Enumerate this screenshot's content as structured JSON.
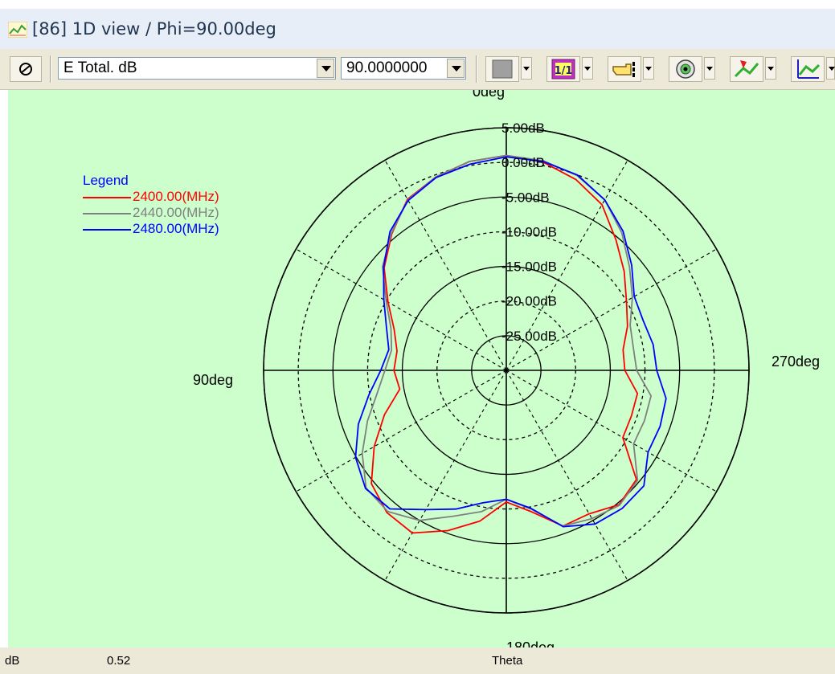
{
  "window": {
    "title": "[86] 1D view / Phi=90.00deg"
  },
  "toolbar": {
    "quantity_select": {
      "value": "E Total. dB"
    },
    "angle_select": {
      "value": "90.0000000"
    },
    "zoom_label": "1/1",
    "icons": [
      "rotate-icon",
      "square-icon",
      "zoom-1-1-icon",
      "pointer-hand-icon",
      "eye-target-icon",
      "arrow-curve-icon",
      "axis-curve-icon"
    ]
  },
  "chart_data": {
    "type": "polar-line",
    "angle_labels": {
      "top": "0deg",
      "left": "90deg",
      "right": "270deg",
      "bottom": "180deg"
    },
    "radial_tick_labels": [
      "5.00dB",
      "0.00dB",
      "-5.00dB",
      "-10.00dB",
      "-15.00dB",
      "-20.00dB",
      "-25.00dB"
    ],
    "radial_ticks_db": [
      5,
      0,
      -5,
      -10,
      -15,
      -20,
      -25
    ],
    "rlim_db": [
      -30,
      5
    ],
    "angle_unit": "deg",
    "grid": true,
    "legend": {
      "title": "Legend",
      "position": "top-left"
    },
    "series": [
      {
        "name": "2400.00(MHz)",
        "color": "#ff0000",
        "theta": [
          0,
          10,
          20,
          30,
          40,
          50,
          60,
          70,
          80,
          90,
          100,
          110,
          120,
          130,
          140,
          150,
          160,
          170,
          180,
          190,
          200,
          210,
          220,
          230,
          240,
          250,
          260,
          270,
          280,
          290,
          300,
          310,
          320,
          330,
          340,
          350
        ],
        "values": [
          1.0,
          0.6,
          -0.3,
          -1.5,
          -4.3,
          -7.0,
          -10.3,
          -12.8,
          -14.0,
          -13.8,
          -14.4,
          -11.3,
          -8.0,
          -4.6,
          -3.2,
          -2.9,
          -5.4,
          -7.9,
          -11.0,
          -9.3,
          -6.1,
          -6.1,
          -4.7,
          -5.5,
          -10.6,
          -10.8,
          -10.8,
          -12.9,
          -12.9,
          -11.4,
          -10.0,
          -7.8,
          -5.4,
          -2.4,
          -0.7,
          0.5
        ]
      },
      {
        "name": "2440.00(MHz)",
        "color": "#808080",
        "theta": [
          0,
          10,
          20,
          30,
          40,
          50,
          60,
          70,
          80,
          90,
          100,
          110,
          120,
          130,
          140,
          150,
          160,
          170,
          180,
          190,
          200,
          210,
          220,
          230,
          240,
          250,
          260,
          270,
          280,
          290,
          300,
          310,
          320,
          330,
          340,
          350
        ],
        "values": [
          1.0,
          0.6,
          -0.3,
          -1.6,
          -4.2,
          -6.7,
          -10.0,
          -12.3,
          -13.2,
          -12.5,
          -11.1,
          -8.7,
          -6.0,
          -3.6,
          -3.4,
          -5.0,
          -7.6,
          -9.3,
          -11.4,
          -9.7,
          -6.1,
          -5.3,
          -4.6,
          -5.3,
          -8.8,
          -8.8,
          -8.8,
          -11.2,
          -11.4,
          -11.0,
          -9.0,
          -6.8,
          -4.1,
          -1.6,
          -0.1,
          0.7
        ]
      },
      {
        "name": "2480.00(MHz)",
        "color": "#0000ff",
        "theta": [
          0,
          10,
          20,
          30,
          40,
          50,
          60,
          70,
          80,
          90,
          100,
          110,
          120,
          130,
          140,
          150,
          160,
          170,
          180,
          190,
          200,
          210,
          220,
          230,
          240,
          250,
          260,
          270,
          280,
          290,
          300,
          310,
          320,
          330,
          340,
          350
        ],
        "values": [
          0.8,
          0.2,
          -0.4,
          -1.7,
          -3.9,
          -6.9,
          -9.6,
          -11.6,
          -12.8,
          -11.9,
          -9.9,
          -7.3,
          -4.9,
          -3.5,
          -3.9,
          -6.8,
          -8.7,
          -10.6,
          -11.4,
          -9.8,
          -6.0,
          -4.4,
          -4.0,
          -4.1,
          -6.4,
          -6.4,
          -6.6,
          -8.3,
          -8.5,
          -9.0,
          -8.7,
          -6.4,
          -3.8,
          -1.6,
          0.0,
          0.6
        ]
      }
    ]
  },
  "statusbar": {
    "unit": "dB",
    "value": "0.52",
    "axis": "Theta"
  }
}
